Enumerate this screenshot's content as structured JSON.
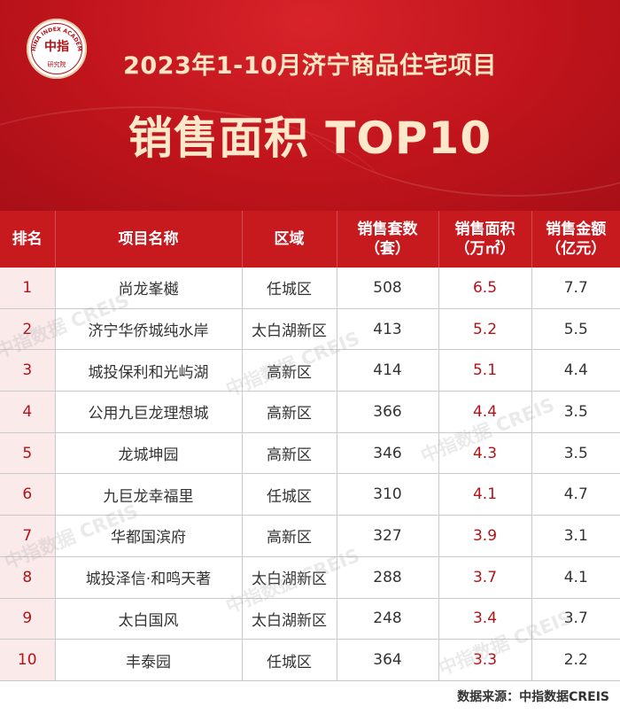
{
  "header": {
    "title_line1": "2023年1-10月济宁商品住宅项目",
    "title_line2": "销售面积 TOP10",
    "logo": {
      "mark": "中指",
      "ring_text": "CHINA INDEX ACADEMY",
      "sub": "研究院"
    }
  },
  "table": {
    "columns": [
      {
        "line1": "排名",
        "line2": ""
      },
      {
        "line1": "项目名称",
        "line2": ""
      },
      {
        "line1": "区域",
        "line2": ""
      },
      {
        "line1": "销售套数",
        "line2": "（套）"
      },
      {
        "line1": "销售面积",
        "line2": "（万㎡）"
      },
      {
        "line1": "销售金额",
        "line2": "（亿元）"
      }
    ],
    "rows": [
      {
        "rank": "1",
        "name": "尚龙峯樾",
        "district": "任城区",
        "units": "508",
        "area": "6.5",
        "amount": "7.7"
      },
      {
        "rank": "2",
        "name": "济宁华侨城纯水岸",
        "district": "太白湖新区",
        "units": "413",
        "area": "5.2",
        "amount": "5.5"
      },
      {
        "rank": "3",
        "name": "城投保利和光屿湖",
        "district": "高新区",
        "units": "414",
        "area": "5.1",
        "amount": "4.4"
      },
      {
        "rank": "4",
        "name": "公用九巨龙理想城",
        "district": "高新区",
        "units": "366",
        "area": "4.4",
        "amount": "3.5"
      },
      {
        "rank": "5",
        "name": "龙城坤园",
        "district": "高新区",
        "units": "346",
        "area": "4.3",
        "amount": "3.5"
      },
      {
        "rank": "6",
        "name": "九巨龙幸福里",
        "district": "任城区",
        "units": "310",
        "area": "4.1",
        "amount": "4.7"
      },
      {
        "rank": "7",
        "name": "华都国滨府",
        "district": "高新区",
        "units": "327",
        "area": "3.9",
        "amount": "3.1"
      },
      {
        "rank": "8",
        "name": "城投泽信·和鸣天著",
        "district": "太白湖新区",
        "units": "288",
        "area": "3.7",
        "amount": "4.1"
      },
      {
        "rank": "9",
        "name": "太白国风",
        "district": "太白湖新区",
        "units": "248",
        "area": "3.4",
        "amount": "3.7"
      },
      {
        "rank": "10",
        "name": "丰泰园",
        "district": "任城区",
        "units": "364",
        "area": "3.3",
        "amount": "2.2"
      }
    ]
  },
  "watermark": "中指数据 CREIS",
  "source": "数据来源：中指数据CREIS",
  "colors": {
    "brand_red": "#c61a1f",
    "title_gold": "#fde9c9",
    "rank_bg": "#fbeaea",
    "value_red": "#b31217"
  }
}
